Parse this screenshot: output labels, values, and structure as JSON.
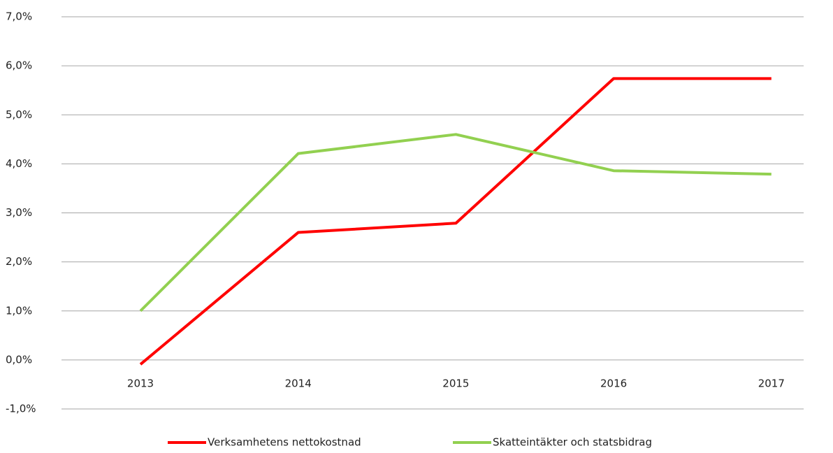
{
  "chart_data": {
    "type": "line",
    "categories": [
      "2013",
      "2014",
      "2015",
      "2016",
      "2017"
    ],
    "series": [
      {
        "name": "Verksamhetens nettokostnad",
        "color": "#ff0000",
        "values": [
          -0.09,
          2.6,
          2.79,
          5.74,
          5.74
        ]
      },
      {
        "name": "Skatteintäkter och statsbidrag",
        "color": "#92d050",
        "values": [
          1.0,
          4.21,
          4.6,
          3.86,
          3.79
        ]
      }
    ],
    "ylim": [
      -1,
      7
    ],
    "yticks": [
      {
        "value": -1,
        "label": "-1,0%"
      },
      {
        "value": 0,
        "label": "0,0%"
      },
      {
        "value": 1,
        "label": "1,0%"
      },
      {
        "value": 2,
        "label": "2,0%"
      },
      {
        "value": 3,
        "label": "3,0%"
      },
      {
        "value": 4,
        "label": "4,0%"
      },
      {
        "value": 5,
        "label": "5,0%"
      },
      {
        "value": 6,
        "label": "6,0%"
      },
      {
        "value": 7,
        "label": "7,0%"
      }
    ],
    "grid": true,
    "legend": "bottom"
  }
}
